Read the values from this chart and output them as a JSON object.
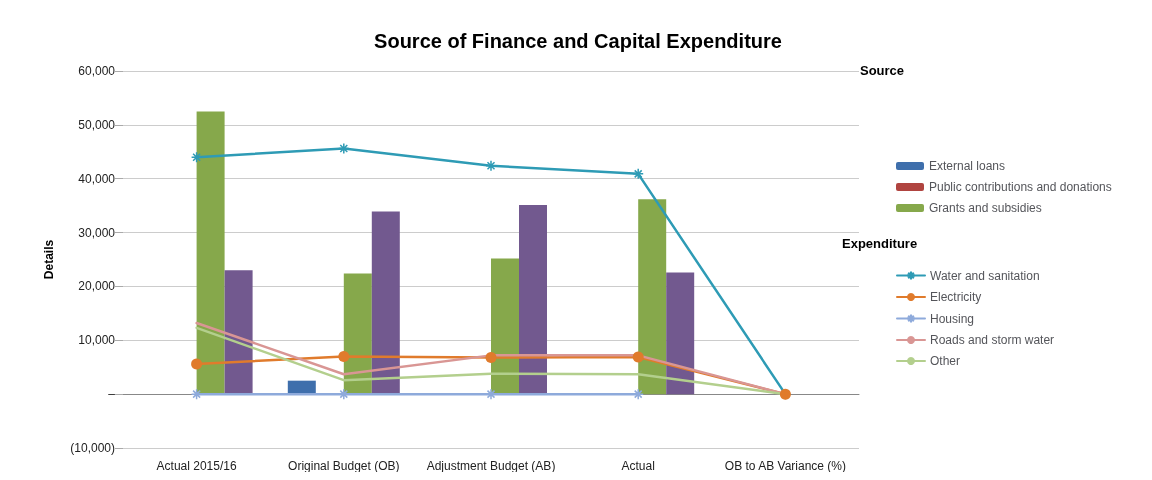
{
  "chart_data": {
    "type": "bar",
    "title": "Source of Finance and Capital Expenditure",
    "ylabel": "Details",
    "categories": [
      "Actual 2015/16",
      "Original Budget (OB)",
      "Adjustment Budget (AB)",
      "Actual",
      "OB to AB Variance (%)"
    ],
    "series": [
      {
        "name": "External loans",
        "color": "#3f6fac",
        "values": [
          0,
          2500,
          0,
          0,
          0
        ]
      },
      {
        "name": "Public contributions and donations",
        "color": "#b04440",
        "values": [
          0,
          0,
          0,
          0,
          0
        ]
      },
      {
        "name": "Grants and subsidies",
        "color": "#86a84b",
        "values": [
          52500,
          22400,
          25200,
          36200,
          0
        ]
      },
      {
        "color": "#72598f",
        "values": [
          23000,
          33900,
          35100,
          22600,
          0
        ]
      },
      {
        "name": "Water and sanitation",
        "type": "line",
        "marker": "cross",
        "color": "#2e9bb5",
        "values": [
          44000,
          45600,
          42400,
          40900,
          0
        ]
      },
      {
        "name": "Electricity",
        "type": "line",
        "marker": "circle",
        "color": "#e07b2c",
        "values": [
          5600,
          7000,
          6800,
          6900,
          0
        ]
      },
      {
        "name": "Housing",
        "type": "line",
        "marker": "cross",
        "color": "#8eaadb",
        "values": [
          0,
          0,
          0,
          0,
          null
        ]
      },
      {
        "name": "Roads and storm water",
        "type": "line",
        "marker": "none",
        "color": "#d99694",
        "values": [
          13200,
          3700,
          7200,
          7200,
          0
        ]
      },
      {
        "name": "Other",
        "type": "line",
        "marker": "none",
        "color": "#b3cf8d",
        "values": [
          12300,
          2600,
          3800,
          3700,
          0
        ]
      }
    ],
    "ylim": [
      -10000,
      60000
    ],
    "yticks": [
      {
        "value": -10000,
        "label": "(10,000)"
      },
      {
        "value": 0,
        "label": "–"
      },
      {
        "value": 10000,
        "label": "10,000"
      },
      {
        "value": 20000,
        "label": "20,000"
      },
      {
        "value": 30000,
        "label": "30,000"
      },
      {
        "value": 40000,
        "label": "40,000"
      },
      {
        "value": 50000,
        "label": "50,000"
      },
      {
        "value": 60000,
        "label": "60,000"
      }
    ],
    "grid": "y",
    "legend": "right",
    "annotations": [
      "Source",
      "Expenditure"
    ]
  }
}
